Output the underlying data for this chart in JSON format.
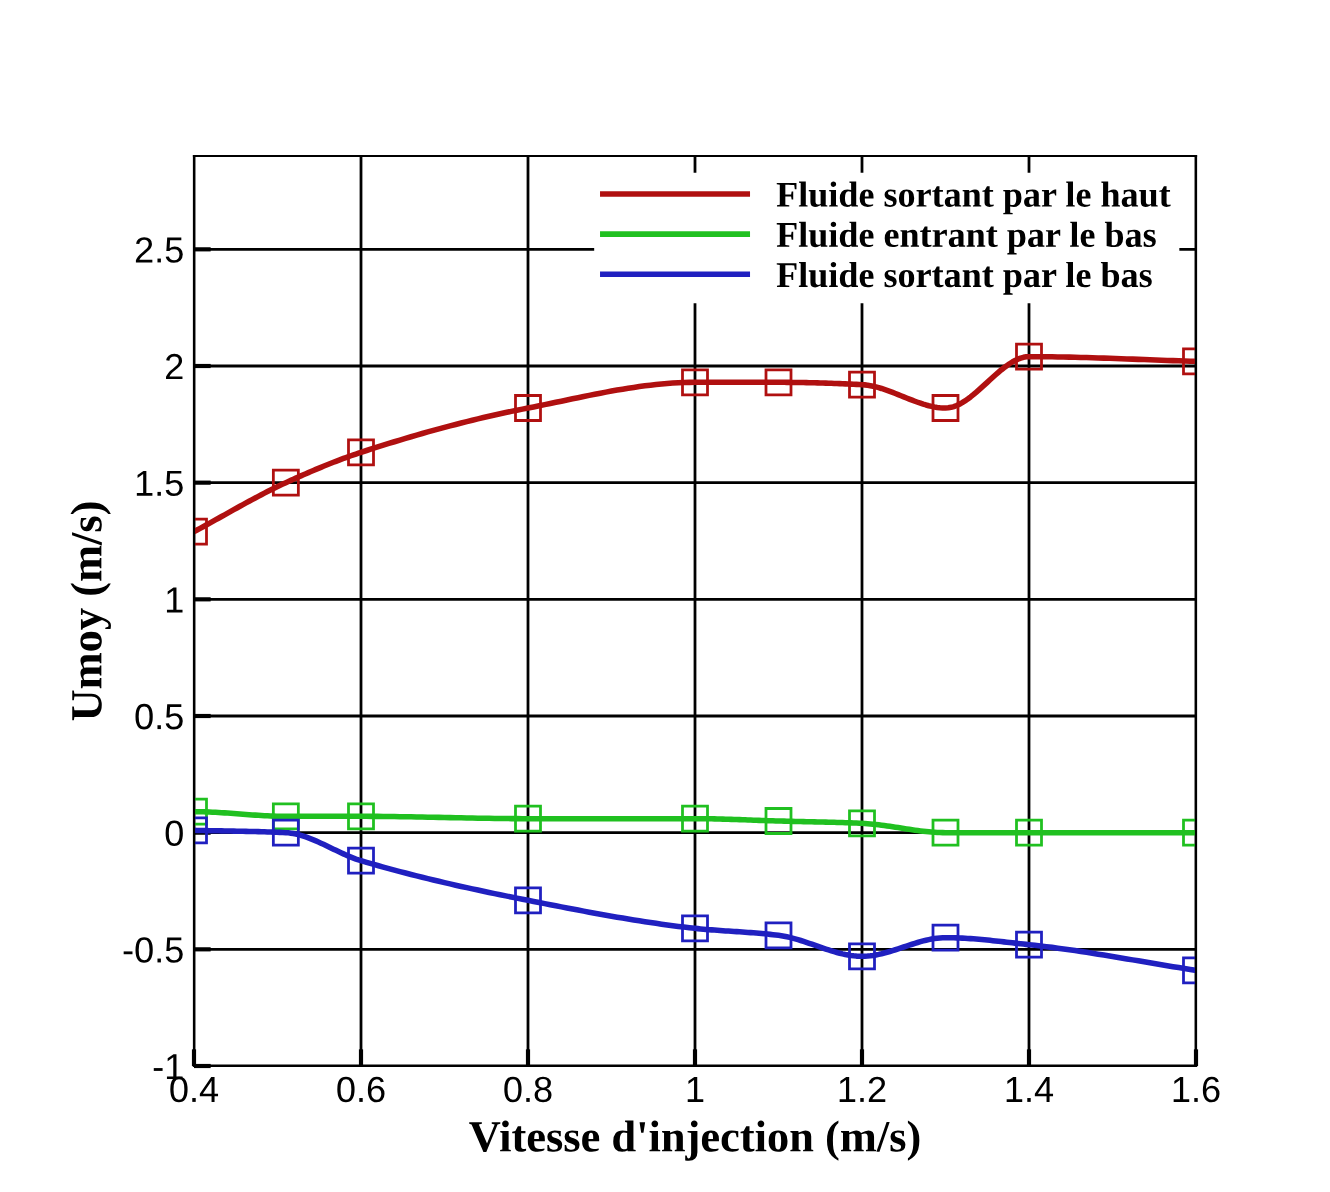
{
  "chart_data": {
    "type": "line",
    "xlabel": "Vitesse d'injection (m/s)",
    "ylabel": "Umoy (m/s)",
    "x": [
      0.4,
      0.51,
      0.6,
      0.8,
      1.0,
      1.1,
      1.2,
      1.3,
      1.4,
      1.6
    ],
    "series": [
      {
        "name": "Fluide sortant par le haut",
        "color": "#b01010",
        "values": [
          1.29,
          1.5,
          1.63,
          1.82,
          1.93,
          1.93,
          1.92,
          1.82,
          2.04,
          2.02
        ]
      },
      {
        "name": "Fluide entrant par le bas",
        "color": "#20c020",
        "values": [
          0.09,
          0.07,
          0.07,
          0.06,
          0.06,
          0.05,
          0.04,
          0.0,
          0.0,
          0.0
        ]
      },
      {
        "name": "Fluide sortant par le bas",
        "color": "#2020c0",
        "values": [
          0.01,
          0.0,
          -0.12,
          -0.29,
          -0.41,
          -0.44,
          -0.53,
          -0.45,
          -0.48,
          -0.59
        ]
      }
    ],
    "xlim": [
      0.4,
      1.6
    ],
    "ylim": [
      -1,
      2.9
    ],
    "xticks": [
      0.4,
      0.6,
      0.8,
      1,
      1.2,
      1.4,
      1.6
    ],
    "yticks": [
      {
        "value": -1,
        "label": "-1"
      },
      {
        "value": -0.5,
        "label": "-0.5"
      },
      0,
      0.5,
      1,
      1.5,
      2,
      2.5
    ],
    "grid": true,
    "legend": "top right",
    "marker": "square",
    "line_style": "solid"
  }
}
